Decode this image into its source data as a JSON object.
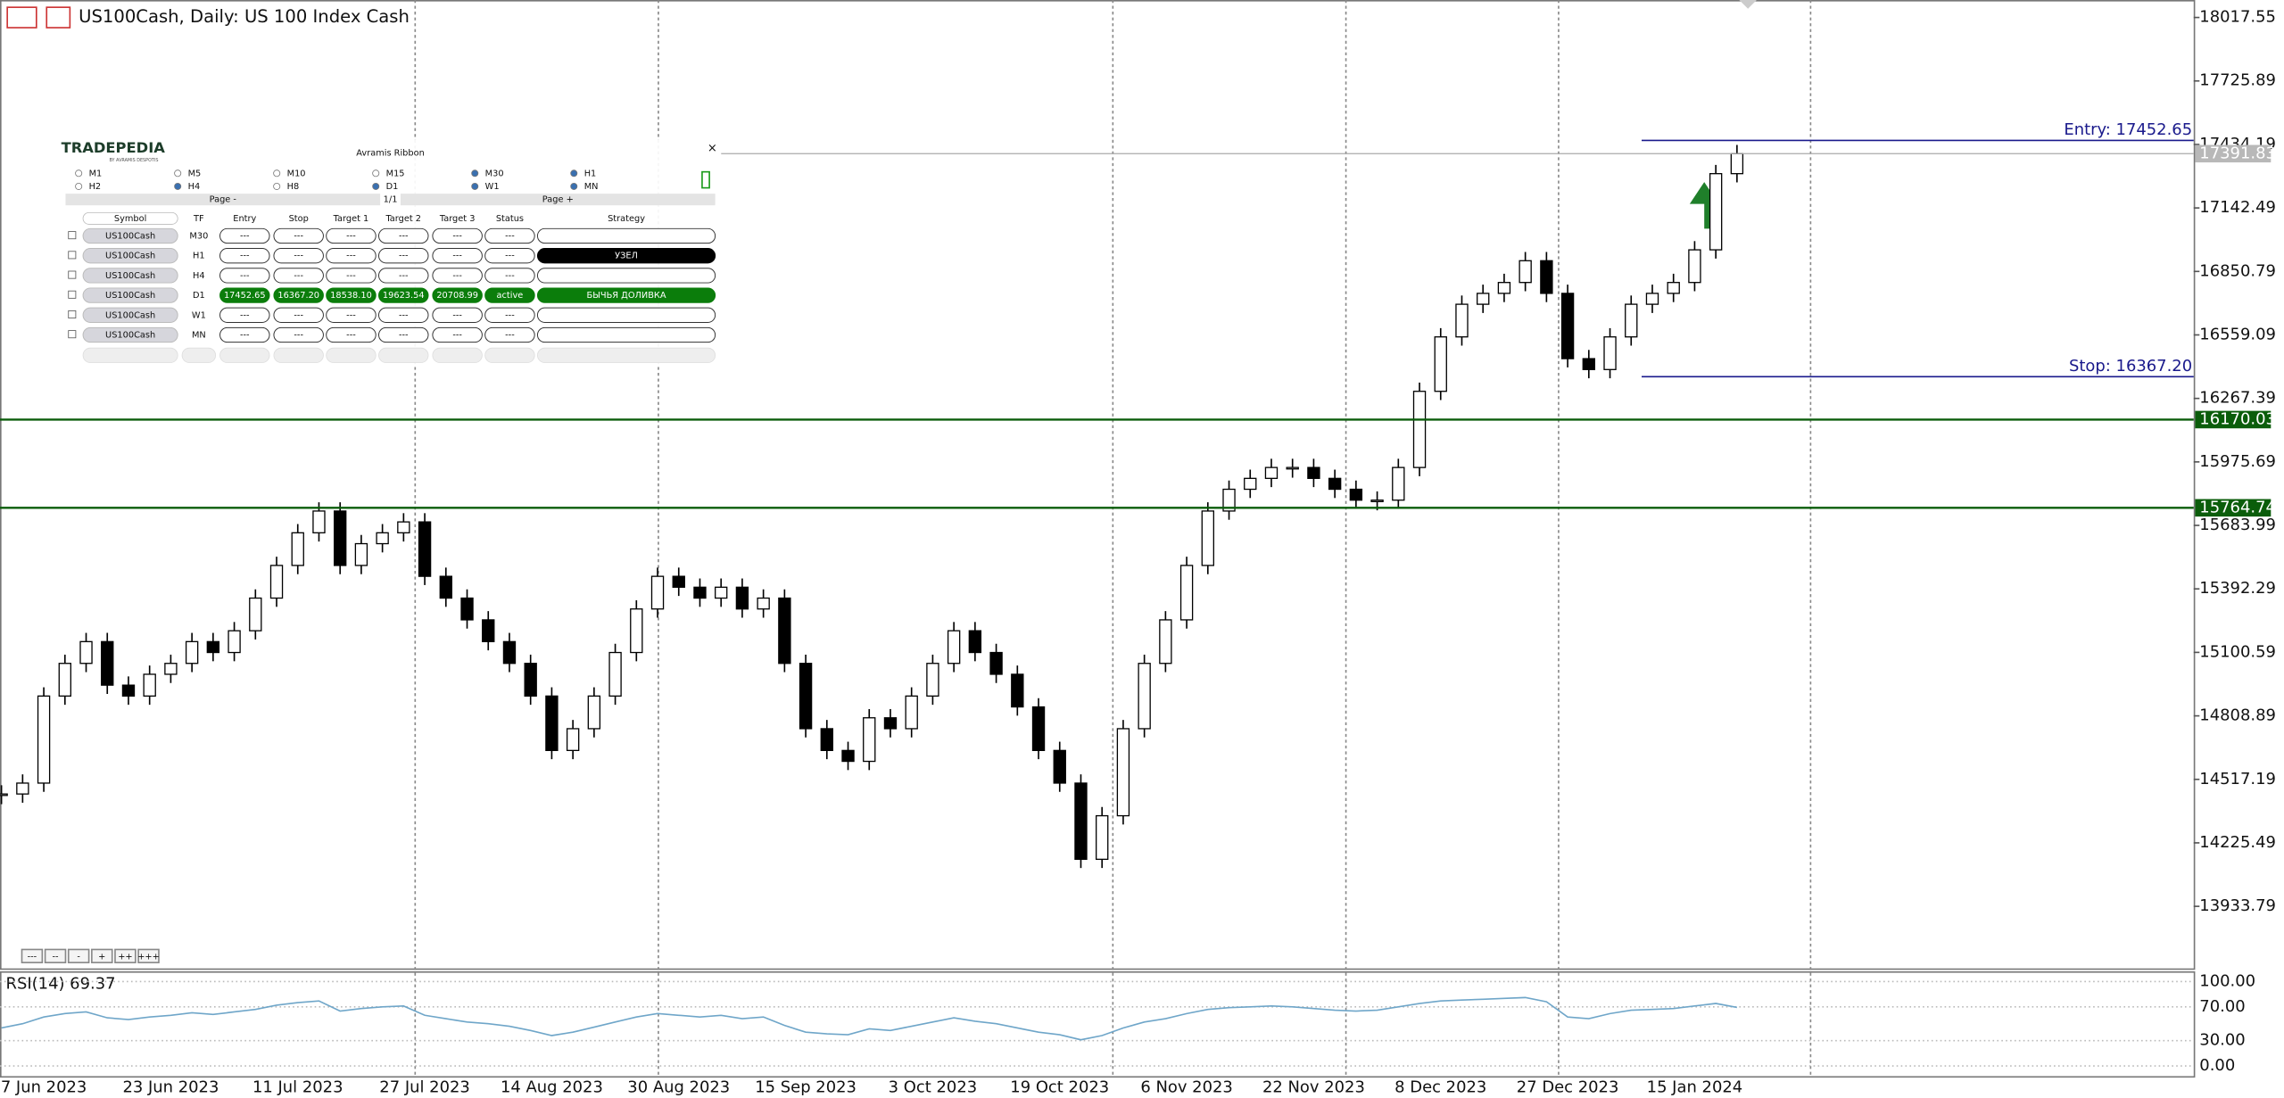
{
  "header": {
    "title": "US100Cash, Daily:  US 100 Index Cash"
  },
  "chart_data": [
    {
      "type": "candlestick",
      "categories": [
        null,
        null,
        "7 Jun 2023",
        null,
        null,
        null,
        null,
        null,
        "23 Jun 2023",
        null,
        null,
        null,
        null,
        null,
        "11 Jul 2023",
        null,
        null,
        null,
        null,
        null,
        "27 Jul 2023",
        null,
        null,
        null,
        null,
        null,
        "14 Aug 2023",
        null,
        null,
        null,
        null,
        null,
        "30 Aug 2023",
        null,
        null,
        null,
        null,
        null,
        "15 Sep 2023",
        null,
        null,
        null,
        null,
        null,
        "3 Oct 2023",
        null,
        null,
        null,
        null,
        null,
        "19 Oct 2023",
        null,
        null,
        null,
        null,
        null,
        "6 Nov 2023",
        null,
        null,
        null,
        null,
        null,
        "22 Nov 2023",
        null,
        null,
        null,
        null,
        null,
        "8 Dec 2023",
        null,
        null,
        null,
        null,
        null,
        "27 Dec 2023",
        null,
        null,
        null,
        null,
        null,
        "15 Jan 2024",
        null,
        null
      ],
      "series": [
        {
          "name": "US100Cash",
          "values": [
            14450,
            14500,
            14900,
            15050,
            15150,
            14950,
            14900,
            15000,
            15050,
            15150,
            15100,
            15200,
            15350,
            15500,
            15650,
            15750,
            15500,
            15600,
            15650,
            15700,
            15450,
            15350,
            15250,
            15150,
            15050,
            14900,
            14650,
            14750,
            14900,
            15100,
            15300,
            15450,
            15400,
            15350,
            15400,
            15300,
            15350,
            15050,
            14750,
            14650,
            14600,
            14800,
            14750,
            14900,
            15050,
            15200,
            15100,
            15000,
            14850,
            14650,
            14500,
            14150,
            14350,
            14750,
            15050,
            15250,
            15500,
            15750,
            15850,
            15900,
            15950,
            15950,
            15900,
            15850,
            15800,
            15800,
            15950,
            16300,
            16550,
            16700,
            16750,
            16800,
            16900,
            16750,
            16450,
            16400,
            16550,
            16700,
            16750,
            16800,
            16950,
            17300,
            17391.83
          ]
        }
      ],
      "ylim": [
        13648.7,
        18097.8
      ],
      "yticks": [
        18017.55,
        17725.89,
        17434.19,
        17142.49,
        16850.79,
        16559.09,
        16267.39,
        15975.69,
        15683.99,
        15392.29,
        15100.59,
        14808.89,
        14517.19,
        14225.49,
        13933.79
      ],
      "levels": [
        16170.03,
        15764.74
      ],
      "level_color": "#0b5d0b",
      "last_price": 17391.83,
      "entry": {
        "label": "Entry: 17452.65",
        "value": 17452.65
      },
      "stop": {
        "label": "Stop: 16367.20",
        "value": 16367.2
      },
      "trade_color": "#1a1a8c"
    },
    {
      "type": "line",
      "title": "RSI(14) 69.37",
      "series": [
        {
          "name": "RSI(14)",
          "color": "#6fa6c9",
          "values": [
            45,
            50,
            58,
            62,
            64,
            57,
            55,
            58,
            60,
            63,
            61,
            64,
            67,
            72,
            75,
            77,
            65,
            68,
            70,
            71,
            60,
            56,
            52,
            50,
            47,
            42,
            36,
            40,
            46,
            52,
            58,
            62,
            60,
            58,
            60,
            56,
            58,
            48,
            40,
            38,
            37,
            44,
            42,
            47,
            52,
            57,
            53,
            50,
            45,
            40,
            37,
            31,
            36,
            45,
            52,
            56,
            62,
            67,
            69,
            70,
            71,
            70,
            68,
            66,
            65,
            66,
            70,
            74,
            77,
            78,
            79,
            80,
            81,
            76,
            58,
            56,
            62,
            66,
            67,
            68,
            71,
            74,
            69.37
          ]
        }
      ],
      "ylim": [
        0,
        100
      ],
      "yticks": [
        {
          "value": 100,
          "label": "100.00"
        },
        {
          "value": 70,
          "label": "70.00"
        },
        {
          "value": 30,
          "label": "30.00"
        },
        {
          "value": 0,
          "label": "0.00"
        }
      ]
    }
  ],
  "panel": {
    "logo": "TRADEPEDIA",
    "logo_sub": "BY AVRAMIS DESPOTIS",
    "title": "Avramis Ribbon",
    "close": "×",
    "timeframes": [
      {
        "label": "M1",
        "checked": false
      },
      {
        "label": "M5",
        "checked": false
      },
      {
        "label": "M10",
        "checked": false
      },
      {
        "label": "M15",
        "checked": false
      },
      {
        "label": "M30",
        "checked": true
      },
      {
        "label": "H1",
        "checked": true
      },
      {
        "label": "H2",
        "checked": false
      },
      {
        "label": "H4",
        "checked": true
      },
      {
        "label": "H8",
        "checked": false
      },
      {
        "label": "D1",
        "checked": true
      },
      {
        "label": "W1",
        "checked": true
      },
      {
        "label": "MN",
        "checked": true
      }
    ],
    "page_prev": "Page -",
    "page_num": "1/1",
    "page_next": "Page +",
    "columns": [
      "Symbol",
      "TF",
      "Entry",
      "Stop",
      "Target 1",
      "Target 2",
      "Target 3",
      "Status",
      "Strategy"
    ],
    "rows": [
      [
        "US100Cash",
        "M30",
        "---",
        "---",
        "---",
        "---",
        "---",
        "---"
      ],
      [
        "US100Cash",
        "H1",
        "---",
        "---",
        "---",
        "---",
        "---",
        "---",
        "УЗЕЛ"
      ],
      [
        "US100Cash",
        "H4",
        "---",
        "---",
        "---",
        "---",
        "---",
        "---"
      ],
      [
        "US100Cash",
        "D1",
        "17452.65",
        "16367.20",
        "18538.10",
        "19623.54",
        "20708.99",
        "active",
        "БЫЧЬЯ ДОЛИВКА"
      ],
      [
        "US100Cash",
        "W1",
        "---",
        "---",
        "---",
        "---",
        "---",
        "---"
      ],
      [
        "US100Cash",
        "MN",
        "---",
        "---",
        "---",
        "---",
        "---",
        "---"
      ]
    ]
  },
  "buttons": [
    "---",
    "--",
    "-",
    "+",
    "++",
    "+++"
  ]
}
